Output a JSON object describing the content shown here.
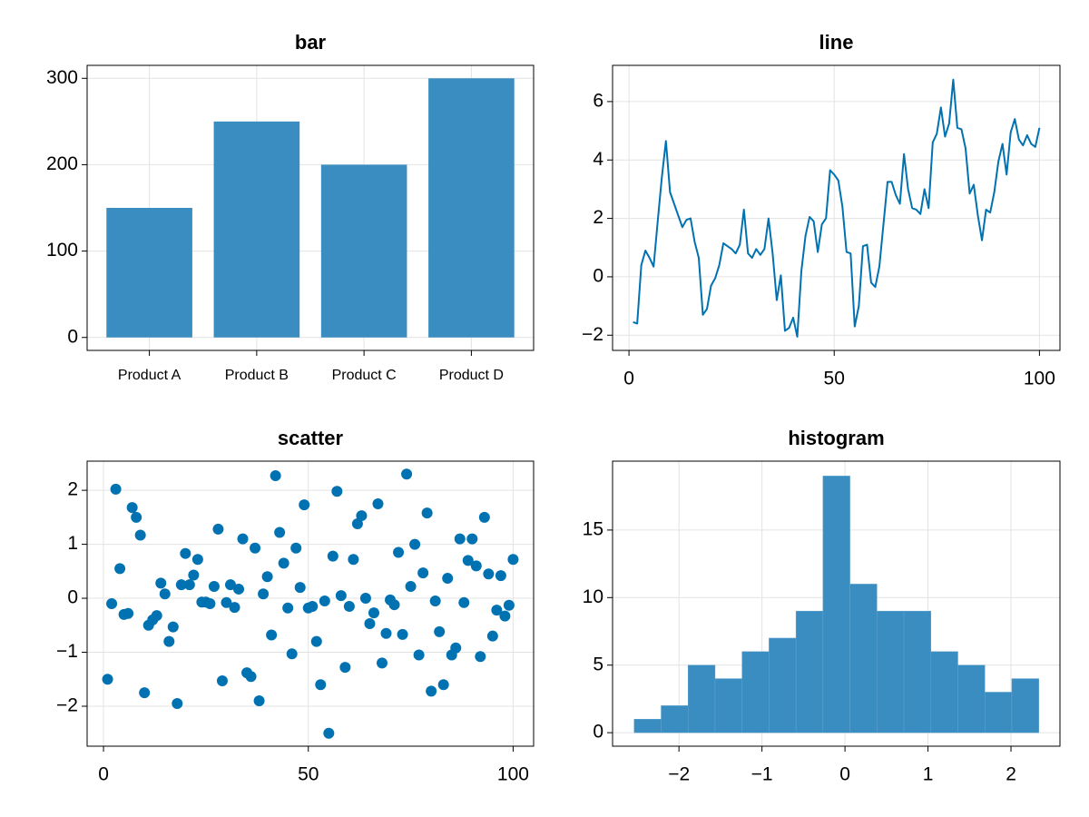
{
  "chart_data": [
    {
      "type": "bar",
      "title": "bar",
      "categories": [
        "Product A",
        "Product B",
        "Product C",
        "Product D"
      ],
      "values": [
        150,
        250,
        200,
        300
      ],
      "color": "#3a8dc1",
      "ylim": [
        -15,
        315
      ],
      "yticks": [
        0,
        100,
        200,
        300
      ],
      "grid": true
    },
    {
      "type": "line",
      "title": "line",
      "color": "#0072b2",
      "grid": true,
      "x": [
        1,
        2,
        3,
        4,
        5,
        6,
        7,
        8,
        9,
        10,
        11,
        12,
        13,
        14,
        15,
        16,
        17,
        18,
        19,
        20,
        21,
        22,
        23,
        24,
        25,
        26,
        27,
        28,
        29,
        30,
        31,
        32,
        33,
        34,
        35,
        36,
        37,
        38,
        39,
        40,
        41,
        42,
        43,
        44,
        45,
        46,
        47,
        48,
        49,
        50,
        51,
        52,
        53,
        54,
        55,
        56,
        57,
        58,
        59,
        60,
        61,
        62,
        63,
        64,
        65,
        66,
        67,
        68,
        69,
        70,
        71,
        72,
        73,
        74,
        75,
        76,
        77,
        78,
        79,
        80,
        81,
        82,
        83,
        84,
        85,
        86,
        87,
        88,
        89,
        90,
        91,
        92,
        93,
        94,
        95,
        96,
        97,
        98,
        99,
        100
      ],
      "values": [
        -1.55,
        -1.6,
        0.4,
        0.9,
        0.65,
        0.35,
        1.9,
        3.4,
        4.65,
        2.9,
        2.5,
        2.1,
        1.7,
        1.95,
        2.0,
        1.2,
        0.65,
        -1.3,
        -1.1,
        -0.3,
        -0.05,
        0.4,
        1.15,
        1.05,
        0.95,
        0.8,
        1.1,
        2.3,
        0.8,
        0.65,
        0.95,
        0.75,
        0.95,
        2.0,
        0.8,
        -0.8,
        0.05,
        -1.85,
        -1.75,
        -1.4,
        -2.05,
        0.2,
        1.4,
        2.05,
        1.9,
        0.85,
        1.8,
        2.0,
        3.65,
        3.5,
        3.3,
        2.4,
        0.85,
        0.8,
        -1.7,
        -1.0,
        1.05,
        1.1,
        -0.2,
        -0.35,
        0.35,
        1.8,
        3.25,
        3.25,
        2.8,
        2.5,
        4.2,
        3.0,
        2.35,
        2.3,
        2.15,
        3.0,
        2.35,
        4.6,
        4.9,
        5.8,
        4.8,
        5.25,
        6.75,
        5.1,
        5.05,
        4.4,
        2.85,
        3.15,
        2.1,
        1.25,
        2.3,
        2.2,
        2.9,
        3.95,
        4.55,
        3.5,
        4.95,
        5.4,
        4.7,
        4.5,
        4.85,
        4.55,
        4.45,
        5.1
      ],
      "xlim": [
        -4,
        105
      ],
      "xticks": [
        0,
        50,
        100
      ],
      "ylim": [
        -2.52,
        7.24
      ],
      "yticks": [
        {
          "value": -2,
          "label": "−2"
        },
        0,
        2,
        4,
        6
      ]
    },
    {
      "type": "scatter",
      "title": "scatter",
      "color": "#0072b2",
      "grid": true,
      "x": [
        1,
        2,
        3,
        4,
        5,
        6,
        7,
        8,
        9,
        10,
        11,
        12,
        13,
        14,
        15,
        16,
        17,
        18,
        19,
        20,
        21,
        22,
        23,
        24,
        25,
        26,
        27,
        28,
        29,
        30,
        31,
        32,
        33,
        34,
        35,
        36,
        37,
        38,
        39,
        40,
        41,
        42,
        43,
        44,
        45,
        46,
        47,
        48,
        49,
        50,
        51,
        52,
        53,
        54,
        55,
        56,
        57,
        58,
        59,
        60,
        61,
        62,
        63,
        64,
        65,
        66,
        67,
        68,
        69,
        70,
        71,
        72,
        73,
        74,
        75,
        76,
        77,
        78,
        79,
        80,
        81,
        82,
        83,
        84,
        85,
        86,
        87,
        88,
        89,
        90,
        91,
        92,
        93,
        94,
        95,
        96,
        97,
        98,
        99,
        100
      ],
      "values": [
        -1.5,
        -0.1,
        2.02,
        0.55,
        -0.3,
        -0.28,
        1.68,
        1.5,
        1.17,
        -1.75,
        -0.5,
        -0.4,
        -0.32,
        0.28,
        0.08,
        -0.8,
        -0.53,
        -1.95,
        0.25,
        0.83,
        0.25,
        0.43,
        0.72,
        -0.07,
        -0.07,
        -0.1,
        0.22,
        1.28,
        -1.53,
        -0.08,
        0.25,
        -0.17,
        0.17,
        1.1,
        -1.38,
        -1.45,
        0.93,
        -1.9,
        0.08,
        0.4,
        -0.68,
        2.27,
        1.22,
        0.65,
        -0.18,
        -1.03,
        0.93,
        0.2,
        1.73,
        -0.18,
        -0.15,
        -0.8,
        -1.6,
        -0.05,
        -2.5,
        0.78,
        1.98,
        0.05,
        -1.28,
        -0.15,
        0.72,
        1.38,
        1.53,
        0.0,
        -0.47,
        -0.27,
        1.75,
        -1.2,
        -0.65,
        -0.03,
        -0.12,
        0.85,
        -0.67,
        2.3,
        0.22,
        1.0,
        -1.05,
        0.47,
        1.58,
        -1.72,
        -0.05,
        -0.62,
        -1.6,
        0.37,
        -1.05,
        -0.92,
        1.1,
        -0.08,
        0.7,
        1.1,
        0.6,
        -1.08,
        1.5,
        0.45,
        -0.7,
        -0.22,
        0.42,
        -0.33,
        -0.13,
        0.72
      ],
      "xlim": [
        -4,
        105
      ],
      "xticks": [
        0,
        50,
        100
      ],
      "ylim": [
        -2.74,
        2.54
      ],
      "yticks": [
        {
          "value": -2,
          "label": "−2"
        },
        {
          "value": -1,
          "label": "−1"
        },
        0,
        1,
        2
      ]
    },
    {
      "type": "histogram",
      "title": "histogram",
      "color": "#3a8dc1",
      "grid": true,
      "bins": [
        -2.54,
        -2.215,
        -1.89,
        -1.565,
        -1.24,
        -0.915,
        -0.59,
        -0.265,
        0.06,
        0.385,
        0.71,
        1.035,
        1.36,
        1.685,
        2.01,
        2.335
      ],
      "counts": [
        1,
        2,
        5,
        4,
        6,
        7,
        9,
        19,
        11,
        9,
        9,
        6,
        5,
        3,
        4
      ],
      "xlim": [
        -2.8,
        2.59
      ],
      "xticks": [
        {
          "value": -2,
          "label": "−2"
        },
        {
          "value": -1,
          "label": "−1"
        },
        0,
        1,
        2
      ],
      "ylim": [
        -1,
        20.1
      ],
      "yticks": [
        0,
        5,
        10,
        15
      ]
    }
  ]
}
